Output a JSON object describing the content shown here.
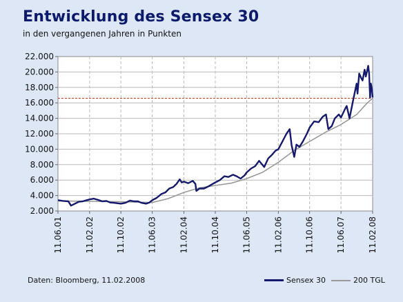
{
  "header": {
    "title": "Entwicklung des Sensex 30",
    "subtitle": "in den vergangenen Jahren in Punkten"
  },
  "footer": {
    "source": "Daten: Bloomberg, 11.02.2008"
  },
  "colors": {
    "background": "#dde7f5",
    "plot_background": "#ffffff",
    "sensex": "#14196e",
    "tgl": "#999999",
    "reference": "#c0392b",
    "grid": "#b9b9b9"
  },
  "chart_data": {
    "type": "line",
    "ylim": [
      2000,
      22000
    ],
    "yticks": [
      2000,
      4000,
      6000,
      8000,
      10000,
      12000,
      14000,
      16000,
      18000,
      20000,
      22000
    ],
    "ytick_labels": [
      "2.000",
      "4.000",
      "6.000",
      "8.000",
      "10.000",
      "12.000",
      "14.000",
      "16.000",
      "18.000",
      "20.000",
      "22.000"
    ],
    "xlim": [
      "2001-06-11",
      "2008-02-11"
    ],
    "xticks": [
      "2001-06-11",
      "2002-02-11",
      "2002-10-11",
      "2003-06-11",
      "2004-02-11",
      "2004-10-11",
      "2005-06-11",
      "2006-02-11",
      "2006-10-11",
      "2007-06-11",
      "2008-02-11"
    ],
    "xtick_labels": [
      "11.06.01",
      "11.02.02",
      "11.10.02",
      "11.06.03",
      "11.02.04",
      "11.10.04",
      "11.06.05",
      "11.02.06",
      "11.10.06",
      "11.06.07",
      "11.02.08"
    ],
    "grid": true,
    "legend_position": "bottom-right",
    "reference_line": 16600,
    "series": [
      {
        "name": "Sensex 30",
        "color": "#14196e",
        "points": [
          [
            "2001-06-11",
            3400
          ],
          [
            "2001-07-20",
            3300
          ],
          [
            "2001-08-30",
            3250
          ],
          [
            "2001-09-20",
            2700
          ],
          [
            "2001-10-15",
            2900
          ],
          [
            "2001-11-20",
            3200
          ],
          [
            "2001-12-20",
            3250
          ],
          [
            "2002-01-20",
            3400
          ],
          [
            "2002-02-11",
            3500
          ],
          [
            "2002-03-15",
            3600
          ],
          [
            "2002-04-15",
            3450
          ],
          [
            "2002-05-20",
            3250
          ],
          [
            "2002-06-20",
            3300
          ],
          [
            "2002-07-20",
            3100
          ],
          [
            "2002-08-20",
            3050
          ],
          [
            "2002-09-15",
            3000
          ],
          [
            "2002-10-11",
            2950
          ],
          [
            "2002-11-15",
            3050
          ],
          [
            "2002-12-20",
            3350
          ],
          [
            "2003-01-20",
            3250
          ],
          [
            "2003-02-20",
            3250
          ],
          [
            "2003-03-20",
            3050
          ],
          [
            "2003-04-25",
            2950
          ],
          [
            "2003-05-20",
            3100
          ],
          [
            "2003-06-11",
            3400
          ],
          [
            "2003-07-15",
            3700
          ],
          [
            "2003-08-20",
            4200
          ],
          [
            "2003-09-20",
            4400
          ],
          [
            "2003-10-20",
            4900
          ],
          [
            "2003-11-20",
            5100
          ],
          [
            "2003-12-15",
            5500
          ],
          [
            "2004-01-10",
            6100
          ],
          [
            "2004-01-25",
            5700
          ],
          [
            "2004-02-11",
            5800
          ],
          [
            "2004-03-15",
            5600
          ],
          [
            "2004-04-20",
            5900
          ],
          [
            "2004-05-10",
            5500
          ],
          [
            "2004-05-17",
            4600
          ],
          [
            "2004-06-10",
            4900
          ],
          [
            "2004-07-15",
            4900
          ],
          [
            "2004-08-20",
            5200
          ],
          [
            "2004-09-20",
            5500
          ],
          [
            "2004-10-11",
            5700
          ],
          [
            "2004-11-15",
            6000
          ],
          [
            "2004-12-20",
            6500
          ],
          [
            "2005-01-20",
            6400
          ],
          [
            "2005-02-25",
            6700
          ],
          [
            "2005-03-25",
            6500
          ],
          [
            "2005-04-25",
            6200
          ],
          [
            "2005-05-25",
            6600
          ],
          [
            "2005-06-11",
            7000
          ],
          [
            "2005-07-15",
            7500
          ],
          [
            "2005-08-15",
            7800
          ],
          [
            "2005-09-15",
            8500
          ],
          [
            "2005-10-25",
            7700
          ],
          [
            "2005-11-25",
            8800
          ],
          [
            "2005-12-25",
            9300
          ],
          [
            "2006-01-20",
            9800
          ],
          [
            "2006-02-11",
            10000
          ],
          [
            "2006-03-15",
            11000
          ],
          [
            "2006-04-15",
            12000
          ],
          [
            "2006-05-10",
            12600
          ],
          [
            "2006-05-25",
            10500
          ],
          [
            "2006-06-14",
            9000
          ],
          [
            "2006-07-01",
            10600
          ],
          [
            "2006-07-25",
            10300
          ],
          [
            "2006-08-20",
            11000
          ],
          [
            "2006-09-20",
            12000
          ],
          [
            "2006-10-11",
            12800
          ],
          [
            "2006-11-15",
            13600
          ],
          [
            "2006-12-20",
            13500
          ],
          [
            "2007-01-20",
            14200
          ],
          [
            "2007-02-15",
            14500
          ],
          [
            "2007-03-05",
            12600
          ],
          [
            "2007-04-01",
            13000
          ],
          [
            "2007-04-25",
            14000
          ],
          [
            "2007-05-25",
            14500
          ],
          [
            "2007-06-11",
            14100
          ],
          [
            "2007-07-15",
            15300
          ],
          [
            "2007-07-25",
            15600
          ],
          [
            "2007-08-16",
            14000
          ],
          [
            "2007-09-15",
            16500
          ],
          [
            "2007-10-10",
            18500
          ],
          [
            "2007-10-17",
            17200
          ],
          [
            "2007-10-30",
            19800
          ],
          [
            "2007-11-15",
            19200
          ],
          [
            "2007-11-25",
            18900
          ],
          [
            "2007-12-11",
            20300
          ],
          [
            "2007-12-20",
            19400
          ],
          [
            "2008-01-08",
            20800
          ],
          [
            "2008-01-15",
            19800
          ],
          [
            "2008-01-22",
            16700
          ],
          [
            "2008-01-28",
            18500
          ],
          [
            "2008-02-05",
            17800
          ],
          [
            "2008-02-11",
            16700
          ]
        ]
      },
      {
        "name": "200 TGL",
        "color": "#999999",
        "points": [
          [
            "2001-06-11",
            3300
          ],
          [
            "2002-02-11",
            3250
          ],
          [
            "2002-10-11",
            3200
          ],
          [
            "2003-06-11",
            3100
          ],
          [
            "2003-10-11",
            3600
          ],
          [
            "2004-02-11",
            4400
          ],
          [
            "2004-06-11",
            5000
          ],
          [
            "2004-10-11",
            5300
          ],
          [
            "2005-02-11",
            5600
          ],
          [
            "2005-06-11",
            6200
          ],
          [
            "2005-10-11",
            7000
          ],
          [
            "2006-02-11",
            8300
          ],
          [
            "2006-06-11",
            9800
          ],
          [
            "2006-10-11",
            11000
          ],
          [
            "2007-02-11",
            12200
          ],
          [
            "2007-06-11",
            13200
          ],
          [
            "2007-10-11",
            14500
          ],
          [
            "2008-01-01",
            16000
          ],
          [
            "2008-02-11",
            16600
          ]
        ]
      }
    ]
  }
}
